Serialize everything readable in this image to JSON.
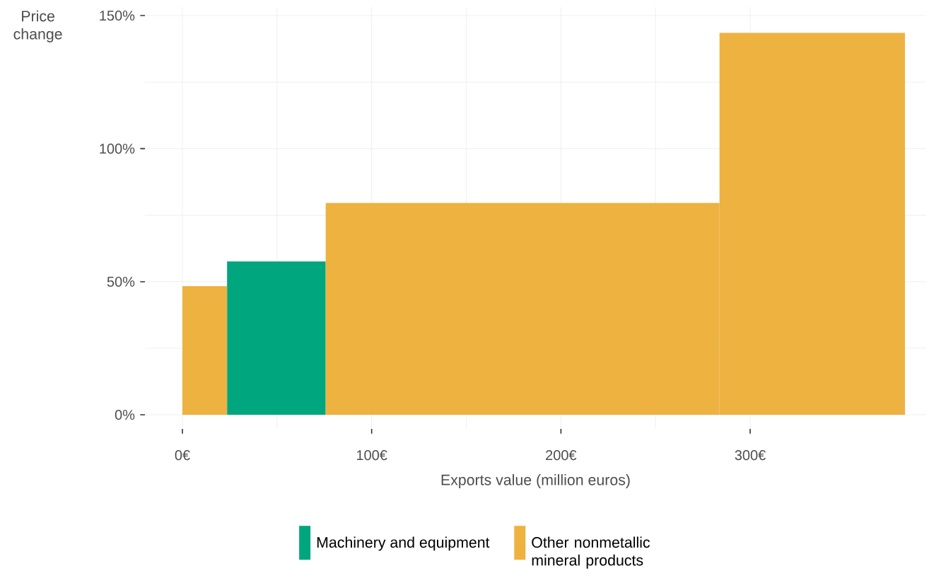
{
  "chart_data": {
    "type": "histogram",
    "xlabel": "Exports value (million euros)",
    "ylabel": "Price change",
    "bins": [
      0,
      23.6,
      75.7,
      283.8,
      381.8
    ],
    "series": [
      {
        "name": "Machinery and equipment",
        "color": "#00a67e",
        "values": [
          null,
          57.6,
          null,
          null
        ]
      },
      {
        "name": "Other nonmetallic mineral products",
        "color": "#eeb240",
        "values": [
          48.3,
          null,
          79.6,
          143.5
        ]
      }
    ],
    "xlim": [
      -19.8,
      393
    ],
    "ylim": [
      -5.3,
      153.2
    ],
    "xticks": [
      {
        "value": 0,
        "label": "0€"
      },
      {
        "value": 100,
        "label": "100€"
      },
      {
        "value": 200,
        "label": "200€"
      },
      {
        "value": 300,
        "label": "300€"
      }
    ],
    "yticks": [
      {
        "value": 0,
        "label": "0%"
      },
      {
        "value": 50,
        "label": "50%"
      },
      {
        "value": 100,
        "label": "100%"
      },
      {
        "value": 150,
        "label": "150%"
      }
    ],
    "grid": true,
    "legend": "bottom"
  }
}
